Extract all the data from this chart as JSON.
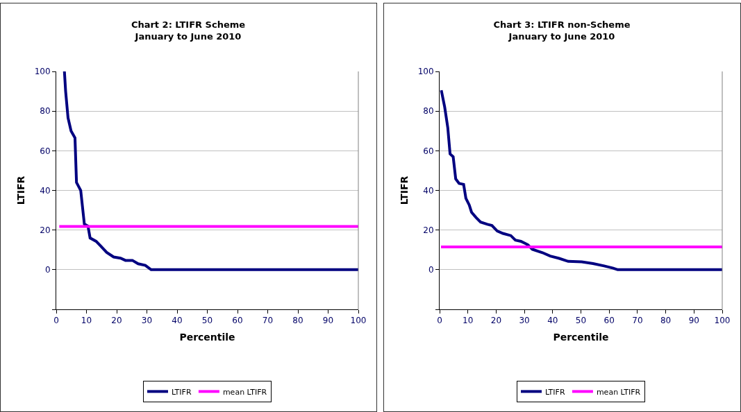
{
  "chart_data": [
    {
      "type": "line",
      "title": "Chart 2: LTIFR Scheme\nJanuary to June 2010",
      "xlabel": "Percentile",
      "ylabel": "LTIFR",
      "xlim": [
        0,
        100
      ],
      "xticks": [
        0,
        10,
        20,
        30,
        40,
        50,
        60,
        70,
        80,
        90,
        100
      ],
      "ylim": [
        -20,
        100
      ],
      "yticks": [
        {
          "value": -20,
          "label": null
        },
        0,
        20,
        40,
        60,
        80,
        100
      ],
      "grid": "y",
      "legend": "bottom",
      "marker": "none",
      "line_style": "solid",
      "series": [
        {
          "name": "LTIFR",
          "color": "#000080",
          "x": [
            2.7,
            3.1,
            3.9,
            4.9,
            6.2,
            6.7,
            8.1,
            9.3,
            10.5,
            11.2,
            13.2,
            14.7,
            16.7,
            19,
            21.3,
            22.9,
            25.2,
            27.1,
            29.5,
            31.4,
            100
          ],
          "values": [
            100,
            90,
            76.6,
            70,
            66.5,
            44,
            40,
            23,
            22,
            16,
            14.3,
            12,
            8.7,
            6.4,
            5.8,
            4.7,
            4.7,
            3,
            2.2,
            0,
            0
          ]
        },
        {
          "name": "mean LTIFR",
          "color": "#ff00ff",
          "x": [
            1,
            100
          ],
          "values": [
            21.8,
            21.8
          ]
        }
      ]
    },
    {
      "type": "line",
      "title": "Chart 3: LTIFR non-Scheme\nJanuary to June 2010",
      "xlabel": "Percentile",
      "ylabel": "LTIFR",
      "xlim": [
        0,
        100
      ],
      "xticks": [
        0,
        10,
        20,
        30,
        40,
        50,
        60,
        70,
        80,
        90,
        100
      ],
      "ylim": [
        -20,
        100
      ],
      "yticks": [
        {
          "value": -20,
          "label": null
        },
        0,
        20,
        40,
        60,
        80,
        100
      ],
      "grid": "y",
      "legend": "bottom",
      "marker": "none",
      "line_style": "solid",
      "series": [
        {
          "name": "LTIFR",
          "color": "#000080",
          "x": [
            0.6,
            1.8,
            2.9,
            3.7,
            4.8,
            5.7,
            6.9,
            8.5,
            9.3,
            10.5,
            11.3,
            12.9,
            14.5,
            16.9,
            18.5,
            20.4,
            22.4,
            25.2,
            26.8,
            28.8,
            31.2,
            32.8,
            36.4,
            39.1,
            42.3,
            45.5,
            50.3,
            54.3,
            58.2,
            61.4,
            63,
            100
          ],
          "values": [
            90.5,
            82,
            71.6,
            58.4,
            57,
            45.8,
            43.5,
            43,
            36,
            32.6,
            29,
            26.3,
            24,
            22.9,
            22.3,
            19.5,
            18.3,
            17.2,
            14.9,
            14.3,
            12.6,
            10.3,
            8.6,
            6.9,
            5.7,
            4.2,
            4,
            3.1,
            1.9,
            0.8,
            0,
            0
          ]
        },
        {
          "name": "mean LTIFR",
          "color": "#ff00ff",
          "x": [
            0.5,
            100
          ],
          "values": [
            11.5,
            11.5
          ]
        }
      ]
    }
  ]
}
